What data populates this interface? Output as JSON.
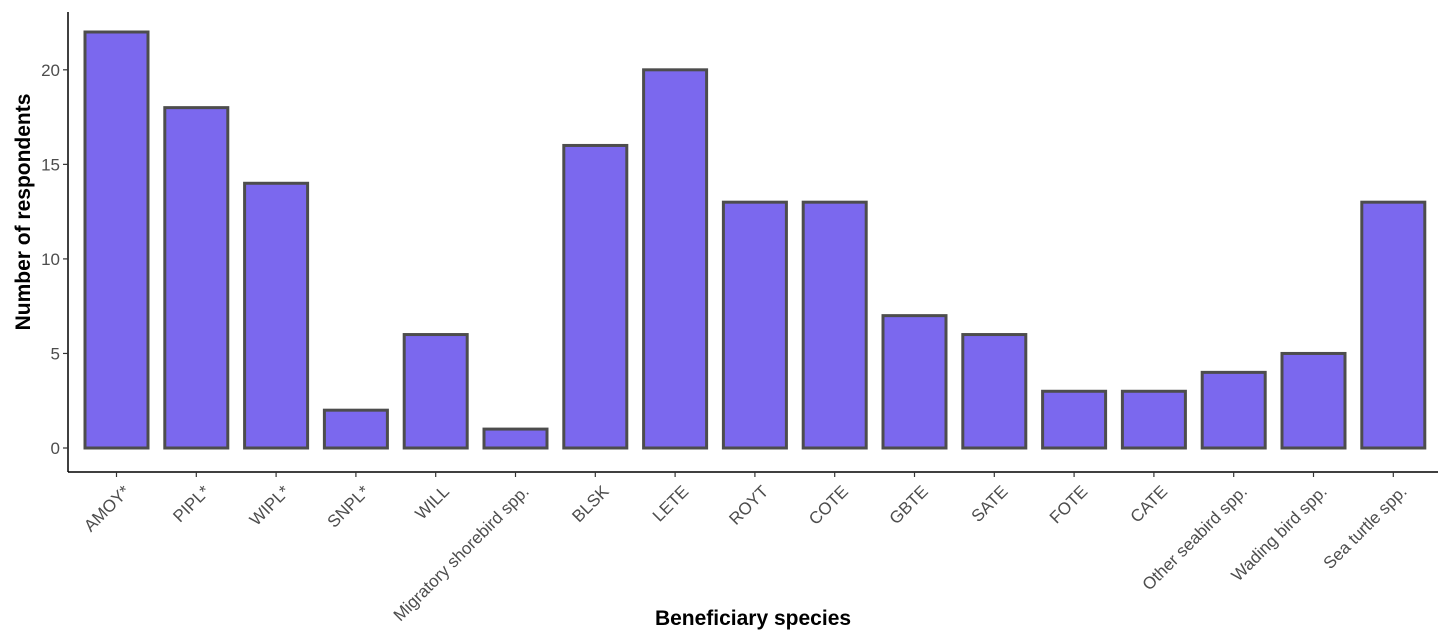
{
  "chart_data": {
    "type": "bar",
    "title": "",
    "xlabel": "Beneficiary species",
    "ylabel": "Number of respondents",
    "categories": [
      "AMOY*",
      "PIPL*",
      "WIPL*",
      "SNPL*",
      "WILL",
      "Migratory shorebird spp.",
      "BLSK",
      "LETE",
      "ROYT",
      "COTE",
      "GBTE",
      "SATE",
      "FOTE",
      "CATE",
      "Other seabird spp.",
      "Wading bird spp.",
      "Sea turtle spp."
    ],
    "values": [
      22,
      18,
      14,
      2,
      6,
      1,
      16,
      20,
      13,
      13,
      7,
      6,
      3,
      3,
      4,
      5,
      13
    ],
    "ylim": [
      0,
      22
    ],
    "yticks": [
      0,
      5,
      10,
      15,
      20
    ],
    "grid": false,
    "bar_fill": "#7B68EE",
    "bar_stroke": "#4d4d4d"
  }
}
